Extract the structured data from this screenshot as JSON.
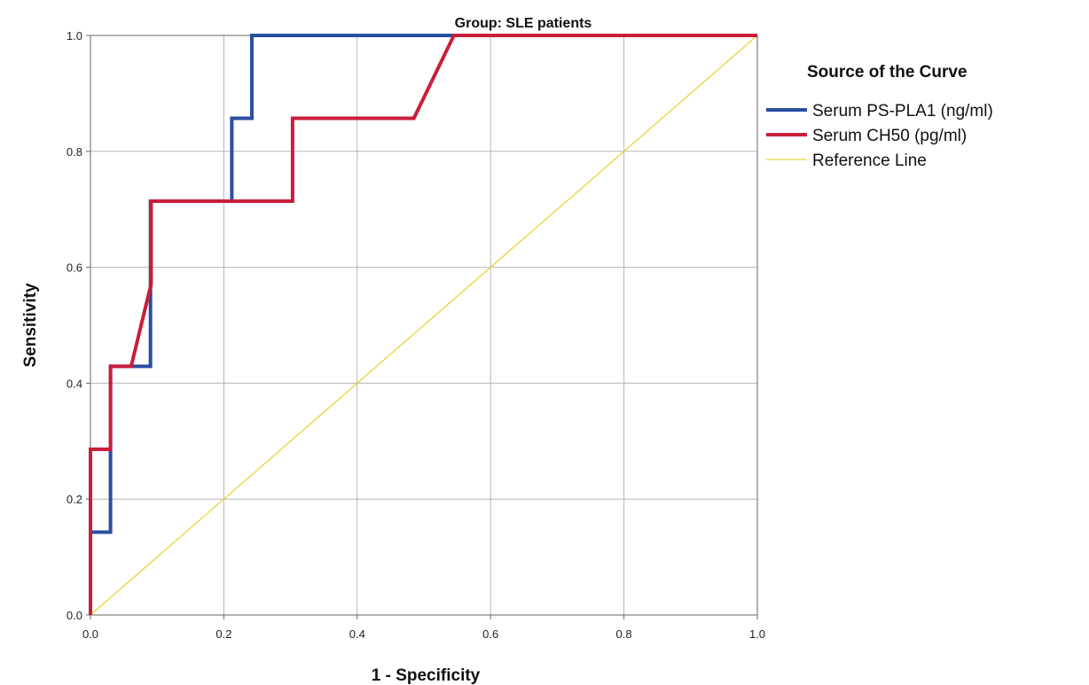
{
  "chart_data": {
    "type": "line",
    "title": "Group: SLE patients",
    "xlabel": "1 - Specificity",
    "ylabel": "Sensitivity",
    "xlim": [
      0,
      1
    ],
    "ylim": [
      0,
      1
    ],
    "x_ticks": [
      "0.0",
      "0.2",
      "0.4",
      "0.6",
      "0.8",
      "1.0"
    ],
    "y_ticks": [
      "0.0",
      "0.2",
      "0.4",
      "0.6",
      "0.8",
      "1.0"
    ],
    "grid": true,
    "legend": {
      "title": "Source of the Curve",
      "position": "right"
    },
    "series": [
      {
        "name": "Serum PS-PLA1 (ng/ml)",
        "color": "#2b4ea2",
        "x": [
          0,
          0,
          0.03,
          0.03,
          0.03,
          0.09,
          0.09,
          0.212,
          0.212,
          0.242,
          0.242,
          1.0
        ],
        "y": [
          0,
          0.143,
          0.143,
          0.286,
          0.429,
          0.429,
          0.714,
          0.714,
          0.857,
          0.857,
          1.0,
          1.0
        ]
      },
      {
        "name": "Serum CH50 (pg/ml)",
        "color": "#c81e3a",
        "x": [
          0,
          0,
          0.03,
          0.03,
          0.061,
          0.091,
          0.091,
          0.303,
          0.303,
          0.485,
          0.545,
          1.0
        ],
        "y": [
          0,
          0.286,
          0.286,
          0.429,
          0.429,
          0.571,
          0.714,
          0.714,
          0.857,
          0.857,
          1.0,
          1.0
        ]
      },
      {
        "name": "Reference Line",
        "color": "#e8d33a",
        "x": [
          0,
          1
        ],
        "y": [
          0,
          1
        ]
      }
    ]
  }
}
